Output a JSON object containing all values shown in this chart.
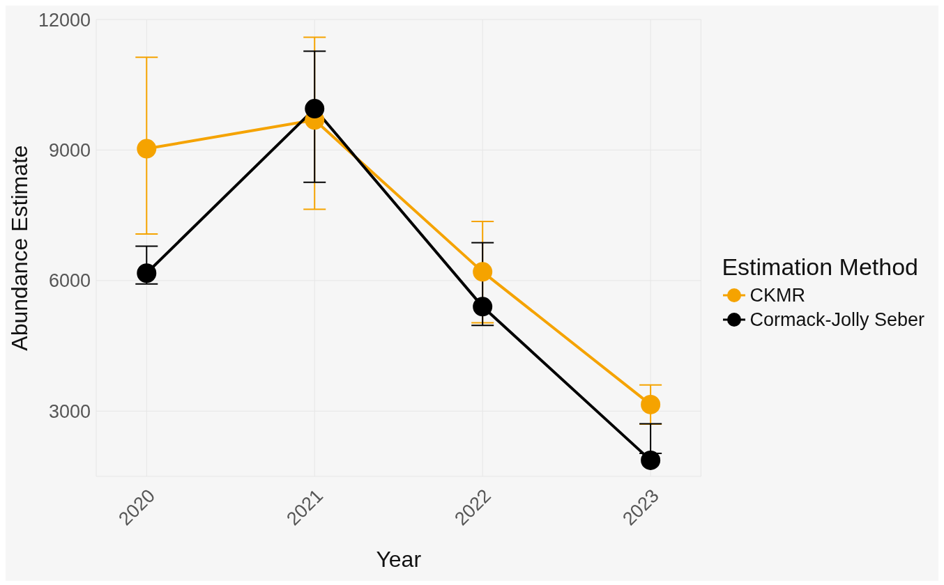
{
  "chart_data": {
    "type": "line",
    "xlabel": "Year",
    "ylabel": "Abundance Estimate",
    "legend_title": "Estimation Method",
    "categories": [
      "2020",
      "2021",
      "2022",
      "2023"
    ],
    "series": [
      {
        "name": "CKMR",
        "color": "#f5a300",
        "values": [
          9030,
          9690,
          6200,
          3150
        ],
        "errors": [
          [
            7070,
            11130
          ],
          [
            7640,
            11590
          ],
          [
            5030,
            7360
          ],
          [
            2700,
            3600
          ]
        ]
      },
      {
        "name": "Cormack-Jolly Seber",
        "color": "#000000",
        "values": [
          6170,
          9950,
          5400,
          1870
        ],
        "errors": [
          [
            5920,
            6790
          ],
          [
            8260,
            11270
          ],
          [
            4970,
            6870
          ],
          [
            2030,
            2710
          ]
        ]
      }
    ],
    "ylim": [
      1500,
      12000
    ],
    "yticks": [
      3000,
      6000,
      9000,
      12000
    ],
    "grid": true,
    "legend": "right",
    "marker": "circle",
    "line_style": "solid"
  }
}
